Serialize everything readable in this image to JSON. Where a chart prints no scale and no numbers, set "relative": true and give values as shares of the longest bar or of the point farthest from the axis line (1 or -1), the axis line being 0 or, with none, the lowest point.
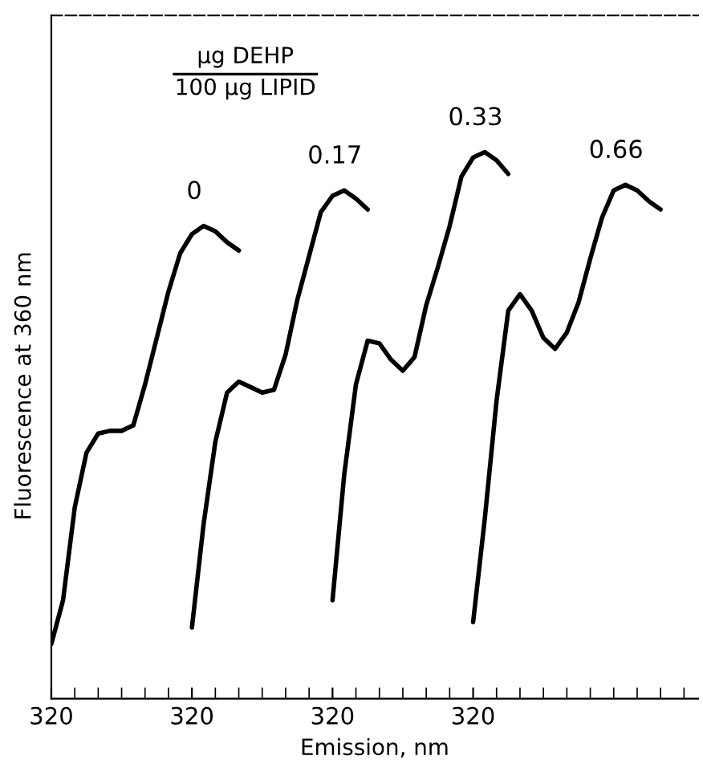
{
  "chart_data": {
    "type": "line",
    "relative": true,
    "legend_title": "µg DEHP\n100 µg LIPID",
    "xlabel": "Emission, nm",
    "ylabel": "Fluorescence at 360 nm",
    "categories": [
      "320",
      null,
      null,
      null,
      null,
      null,
      null,
      null,
      null,
      null,
      null,
      null,
      "320",
      null,
      null,
      null,
      null,
      null,
      null,
      null,
      null,
      null,
      null,
      null,
      "320",
      null,
      null,
      null,
      null,
      null,
      null,
      null,
      null,
      null,
      null,
      null,
      "320",
      null,
      null,
      null,
      null,
      null,
      null,
      null,
      null,
      null,
      null,
      null,
      null,
      null,
      null,
      null,
      null,
      null,
      null
    ],
    "grid": false,
    "legend": false,
    "marker": "none",
    "line_style": "solid",
    "series": [
      {
        "name": "0",
        "color": "#000000",
        "values": [
          0.1,
          0.18,
          0.35,
          0.45,
          0.485,
          0.49,
          0.49,
          0.5,
          0.575,
          0.66,
          0.745,
          0.815,
          0.85,
          0.865,
          0.855,
          0.835,
          0.82,
          null,
          null,
          null,
          null,
          null,
          null,
          null,
          null,
          null,
          null,
          null,
          null,
          null,
          null,
          null,
          null,
          null,
          null,
          null,
          null,
          null,
          null,
          null,
          null,
          null,
          null,
          null,
          null,
          null,
          null,
          null,
          null,
          null,
          null,
          null,
          null,
          null,
          null
        ]
      },
      {
        "name": "0.17",
        "color": "#000000",
        "values": [
          null,
          null,
          null,
          null,
          null,
          null,
          null,
          null,
          null,
          null,
          null,
          null,
          0.13,
          0.32,
          0.47,
          0.56,
          0.58,
          0.57,
          0.56,
          0.565,
          0.63,
          0.73,
          0.81,
          0.89,
          0.92,
          0.93,
          0.915,
          0.895,
          null,
          null,
          null,
          null,
          null,
          null,
          null,
          null,
          null,
          null,
          null,
          null,
          null,
          null,
          null,
          null,
          null,
          null,
          null,
          null,
          null,
          null,
          null,
          null,
          null,
          null,
          null
        ]
      },
      {
        "name": "0.33",
        "color": "#000000",
        "values": [
          null,
          null,
          null,
          null,
          null,
          null,
          null,
          null,
          null,
          null,
          null,
          null,
          null,
          null,
          null,
          null,
          null,
          null,
          null,
          null,
          null,
          null,
          null,
          null,
          0.18,
          0.41,
          0.575,
          0.655,
          0.65,
          0.62,
          0.6,
          0.625,
          0.72,
          0.79,
          0.865,
          0.955,
          0.99,
          1.0,
          0.985,
          0.96,
          null,
          null,
          null,
          null,
          null,
          null,
          null,
          null,
          null,
          null,
          null,
          null,
          null,
          null,
          null
        ]
      },
      {
        "name": "0.66",
        "color": "#000000",
        "values": [
          null,
          null,
          null,
          null,
          null,
          null,
          null,
          null,
          null,
          null,
          null,
          null,
          null,
          null,
          null,
          null,
          null,
          null,
          null,
          null,
          null,
          null,
          null,
          null,
          null,
          null,
          null,
          null,
          null,
          null,
          null,
          null,
          null,
          null,
          null,
          null,
          0.14,
          0.33,
          0.545,
          0.71,
          0.74,
          0.71,
          0.66,
          0.64,
          0.67,
          0.725,
          0.805,
          0.88,
          0.93,
          0.94,
          0.93,
          0.91,
          0.895,
          null,
          null
        ]
      }
    ]
  }
}
